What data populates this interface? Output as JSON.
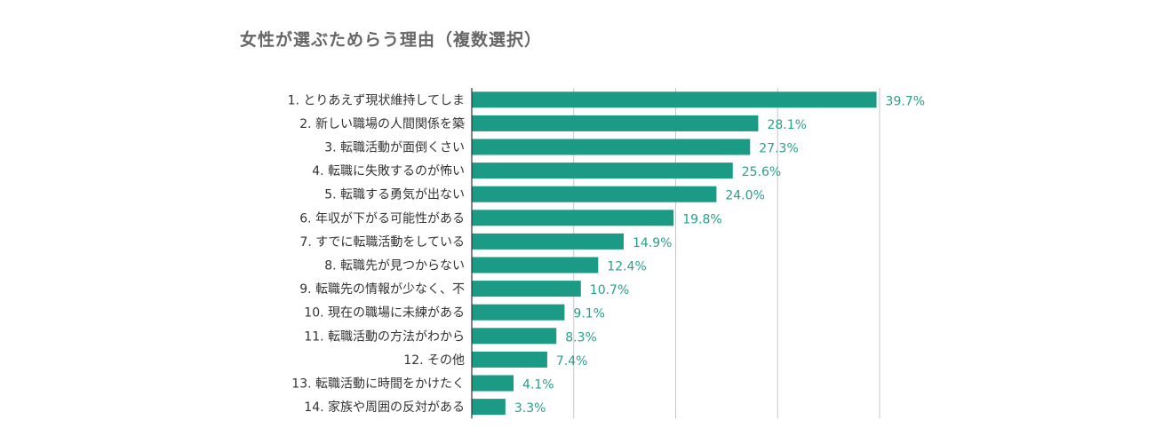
{
  "chart_data": {
    "type": "bar",
    "orientation": "horizontal",
    "title": "女性が選ぶためらう理由（複数選択）",
    "categories": [
      "1. とりあえず現状維持してしま",
      "2. 新しい職場の人間関係を築",
      "3. 転職活動が面倒くさい",
      "4. 転職に失敗するのが怖い",
      "5. 転職する勇気が出ない",
      "6. 年収が下がる可能性がある",
      "7. すでに転職活動をしている",
      "8. 転職先が見つからない",
      "9. 転職先の情報が少なく、不",
      "10. 現在の職場に未練がある",
      "11. 転職活動の方法がわから",
      "12. その他",
      "13. 転職活動に時間をかけたく",
      "14. 家族や周囲の反対がある"
    ],
    "values": [
      39.7,
      28.1,
      27.3,
      25.6,
      24.0,
      19.8,
      14.9,
      12.4,
      10.7,
      9.1,
      8.3,
      7.4,
      4.1,
      3.3
    ],
    "value_labels": [
      "39.7%",
      "28.1%",
      "27.3%",
      "25.6%",
      "24.0%",
      "19.8%",
      "14.9%",
      "12.4%",
      "10.7%",
      "9.1%",
      "8.3%",
      "7.4%",
      "4.1%",
      "3.3%"
    ],
    "xlim": [
      0,
      40
    ],
    "gridlines": [
      10,
      20,
      30,
      40
    ],
    "grid": true,
    "bar_color": "#1b9a86",
    "label_color": "#2aa08c"
  }
}
